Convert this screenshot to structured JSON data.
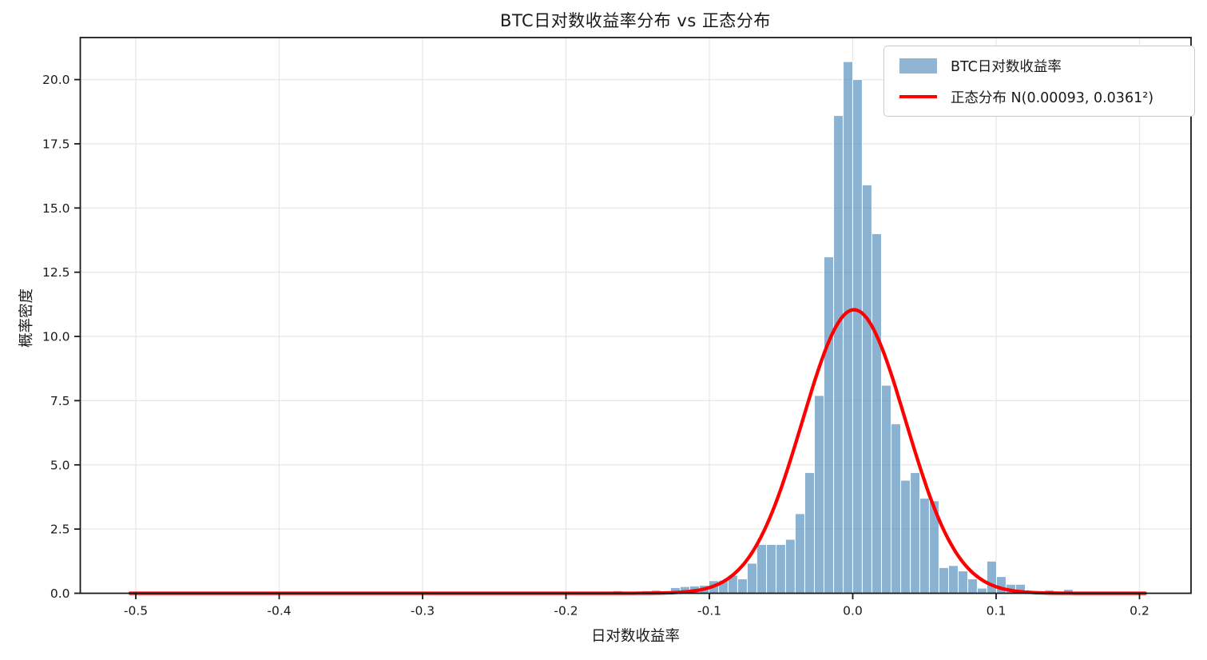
{
  "title": "BTC日对数收益率分布 vs 正态分布",
  "axes": {
    "xlabel": "日对数收益率",
    "ylabel": "概率密度"
  },
  "legend": {
    "items": [
      {
        "label": "BTC日对数收益率",
        "marker": "patch",
        "color": "#90B4D2"
      },
      {
        "label": "正态分布 N(0.00093, 0.0361²)",
        "marker": "line",
        "color": "#FF0000"
      }
    ]
  },
  "style": {
    "bar_fill": "rgba(70,130,180,0.62)",
    "bar_edge": "#ffffff",
    "curve_color": "#FF0000",
    "grid_color": "#e7e7e7",
    "frame_color": "#1a1a1a",
    "text_color": "#1a1a1a",
    "background": "#ffffff"
  },
  "chart_data": {
    "type": "bar",
    "subtype": "histogram-with-normal-overlay",
    "title": "BTC日对数收益率分布 vs 正态分布",
    "xlabel": "日对数收益率",
    "ylabel": "概率密度",
    "grid": true,
    "legend_position": "upper right",
    "xlim": [
      -0.539,
      0.236
    ],
    "ylim": [
      0,
      21.65
    ],
    "xticks": [
      -0.5,
      -0.4,
      -0.3,
      -0.2,
      -0.1,
      0.0,
      0.1,
      0.2
    ],
    "xtick_labels": [
      "-0.5",
      "-0.4",
      "-0.3",
      "-0.2",
      "-0.1",
      "0.0",
      "0.1",
      "0.2"
    ],
    "yticks": [
      0,
      2.5,
      5,
      7.5,
      10,
      12.5,
      15,
      17.5,
      20
    ],
    "ytick_labels": [
      "0.0",
      "2.5",
      "5.0",
      "7.5",
      "10.0",
      "12.5",
      "15.0",
      "17.5",
      "20.0"
    ],
    "bin_width": 0.00668,
    "x": [
      -0.4972,
      -0.1705,
      -0.1638,
      -0.1504,
      -0.1437,
      -0.1371,
      -0.1237,
      -0.117,
      -0.1103,
      -0.1036,
      -0.0969,
      -0.0902,
      -0.0836,
      -0.0769,
      -0.0702,
      -0.0635,
      -0.0568,
      -0.0501,
      -0.0435,
      -0.0368,
      -0.0301,
      -0.0234,
      -0.0167,
      -0.01,
      -0.0033,
      0.0033,
      0.01,
      0.0167,
      0.0234,
      0.0301,
      0.0368,
      0.0435,
      0.0501,
      0.0568,
      0.0635,
      0.0702,
      0.0769,
      0.0836,
      0.0902,
      0.0969,
      0.1036,
      0.1103,
      0.117,
      0.1371,
      0.1504
    ],
    "values": [
      0.05,
      0.08,
      0.1,
      0.05,
      0.1,
      0.12,
      0.22,
      0.26,
      0.28,
      0.31,
      0.49,
      0.51,
      0.7,
      0.56,
      1.17,
      1.9,
      1.9,
      1.9,
      2.1,
      3.1,
      4.7,
      7.7,
      13.1,
      18.6,
      20.7,
      20.0,
      15.9,
      14.0,
      8.1,
      6.6,
      4.4,
      4.7,
      3.7,
      3.6,
      1.0,
      1.08,
      0.87,
      0.56,
      0.2,
      1.25,
      0.65,
      0.35,
      0.35,
      0.13,
      0.15
    ],
    "series_label": "BTC日对数收益率",
    "normal_curve": {
      "label": "正态分布 N(0.00093, 0.0361²)",
      "mean": 0.00093,
      "sigma": 0.0361,
      "peak_density": 11.04,
      "range": [
        -0.504,
        0.204
      ]
    }
  }
}
